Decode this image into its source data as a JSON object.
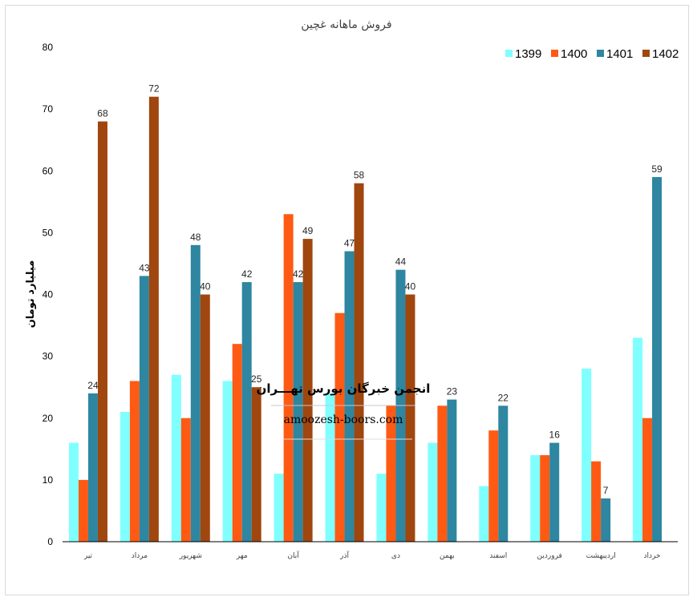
{
  "colors": {
    "s1399": "#80FFFF",
    "s1400": "#FF5A14",
    "s1401": "#2E86A0",
    "s1402": "#A0460F",
    "axis": "#000000",
    "frame": "#D9D9D9"
  },
  "watermark": {
    "title": "انجمن خبرگان بورس تهـــران",
    "url": "amoozesh-boors.com"
  },
  "chart_data": {
    "type": "bar",
    "title": "فروش ماهانه غچین",
    "xlabel": "",
    "ylabel": "میلیارد تومان",
    "ylim": [
      0,
      80
    ],
    "yticks": [
      0,
      10,
      20,
      30,
      40,
      50,
      60,
      70,
      80
    ],
    "grid": false,
    "legend_position": "top-right",
    "categories": [
      "تیر",
      "مرداد",
      "شهریور",
      "مهر",
      "آبان",
      "آذر",
      "دی",
      "بهمن",
      "اسفند",
      "فروردین",
      "اردیبهشت",
      "خرداد"
    ],
    "series": [
      {
        "name": "1399",
        "values": [
          16,
          21,
          27,
          26,
          11,
          24,
          11,
          16,
          9,
          14,
          28,
          33
        ],
        "labels": [
          null,
          null,
          null,
          null,
          null,
          null,
          null,
          null,
          null,
          null,
          null,
          null
        ]
      },
      {
        "name": "1400",
        "values": [
          10,
          26,
          20,
          32,
          53,
          37,
          22,
          22,
          18,
          14,
          13,
          20
        ],
        "labels": [
          null,
          null,
          null,
          null,
          null,
          null,
          null,
          null,
          null,
          null,
          null,
          null
        ]
      },
      {
        "name": "1401",
        "values": [
          24,
          43,
          48,
          42,
          42,
          47,
          44,
          23,
          22,
          16,
          7,
          59
        ],
        "labels": [
          24,
          43,
          48,
          42,
          42,
          47,
          44,
          23,
          22,
          16,
          7,
          59
        ]
      },
      {
        "name": "1402",
        "values": [
          68,
          72,
          40,
          25,
          49,
          58,
          40,
          null,
          null,
          null,
          null,
          null
        ],
        "labels": [
          68,
          72,
          40,
          25,
          49,
          58,
          40,
          null,
          null,
          null,
          null,
          null
        ]
      }
    ]
  }
}
